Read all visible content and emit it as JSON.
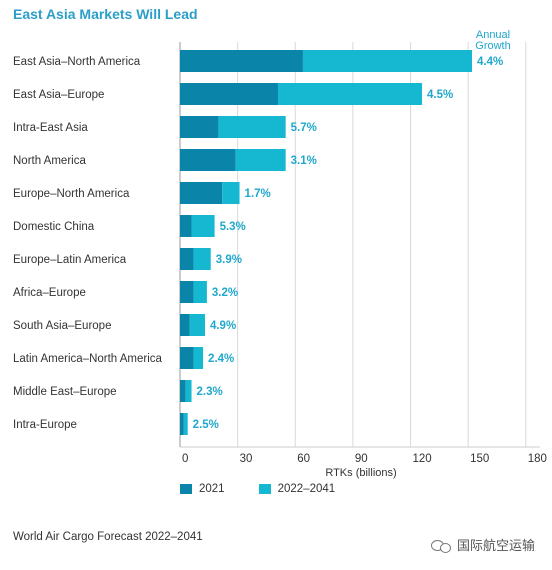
{
  "title": "East Asia Markets Will Lead",
  "annotation": [
    "Annual",
    "Growth"
  ],
  "legend": {
    "series_2021": "2021",
    "series_future": "2022–2041"
  },
  "source": "World Air Cargo Forecast 2022–2041",
  "watermark": "国际航空运输",
  "colors": {
    "series_2021": "#0a84a9",
    "series_future": "#15b8d0",
    "title": "#2b9fc8",
    "growth": "#1fa8cc"
  },
  "chart_data": {
    "type": "bar",
    "orientation": "horizontal",
    "stacked": true,
    "xlabel": "RTKs (billions)",
    "xlim": [
      0,
      180
    ],
    "xticks": [
      0,
      30,
      60,
      90,
      120,
      150,
      180
    ],
    "categories": [
      "East Asia–North America",
      "East Asia–Europe",
      "Intra-East Asia",
      "North America",
      "Europe–North America",
      "Domestic China",
      "Europe–Latin America",
      "Africa–Europe",
      "South Asia–Europe",
      "Latin America–North America",
      "Middle East–Europe",
      "Intra-Europe"
    ],
    "series": [
      {
        "name": "2021",
        "values": [
          64,
          51,
          20,
          29,
          22,
          6,
          7,
          7,
          5,
          7,
          3,
          2
        ]
      },
      {
        "name": "2022–2041",
        "values": [
          88,
          75,
          35,
          26,
          9,
          12,
          9,
          7,
          8,
          5,
          3,
          2
        ]
      }
    ],
    "growth_labels": [
      "4.4%",
      "4.5%",
      "5.7%",
      "3.1%",
      "1.7%",
      "5.3%",
      "3.9%",
      "3.2%",
      "4.9%",
      "2.4%",
      "2.3%",
      "2.5%"
    ]
  }
}
